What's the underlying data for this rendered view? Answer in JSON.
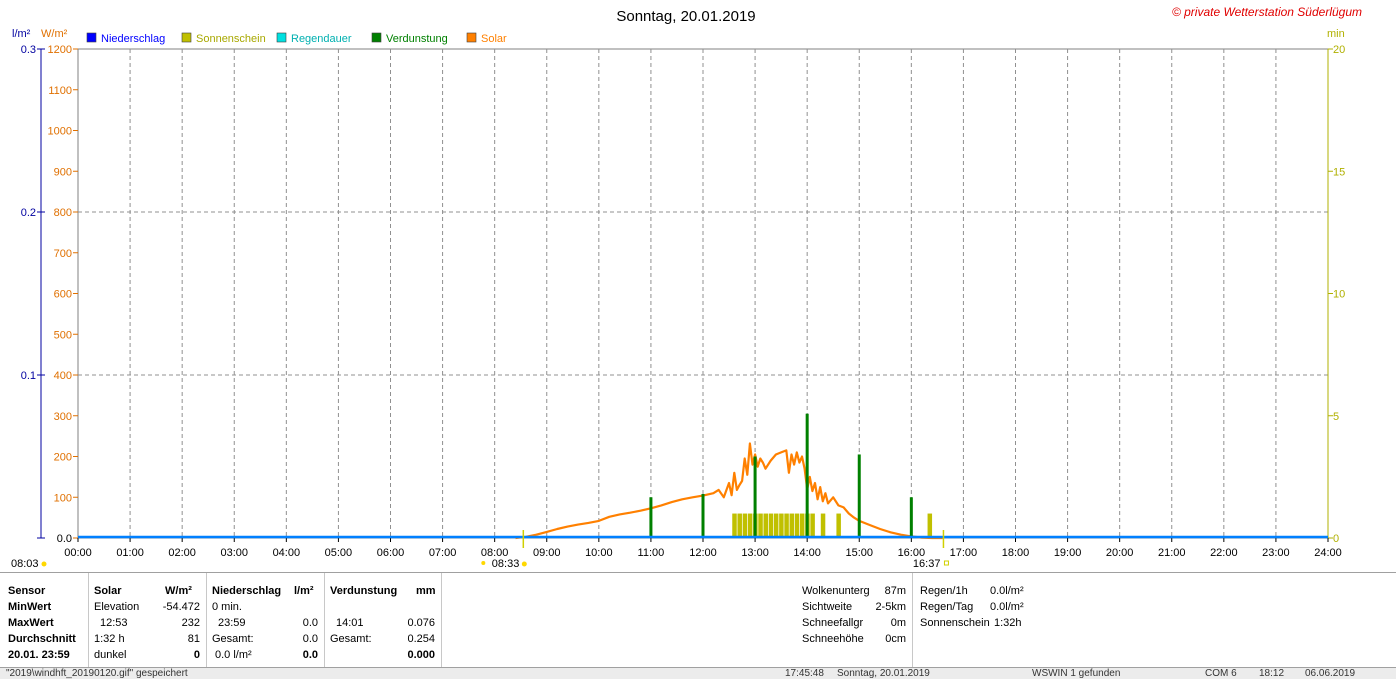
{
  "chart_data": {
    "type": "line",
    "title": "Sonntag, 20.01.2019",
    "copyright": "© private Wetterstation Süderlügum",
    "left_axis_units": [
      "l/m²",
      "W/m²"
    ],
    "right_axis_unit": "min",
    "x_ticks": [
      "00:00",
      "01:00",
      "02:00",
      "03:00",
      "04:00",
      "05:00",
      "06:00",
      "07:00",
      "08:00",
      "09:00",
      "10:00",
      "11:00",
      "12:00",
      "13:00",
      "14:00",
      "15:00",
      "16:00",
      "17:00",
      "18:00",
      "19:00",
      "20:00",
      "21:00",
      "22:00",
      "23:00",
      "24:00"
    ],
    "y_solar_ticks": [
      "0.0",
      "100",
      "200",
      "300",
      "400",
      "500",
      "600",
      "700",
      "800",
      "900",
      "1000",
      "1100",
      "1200"
    ],
    "y_solar_range": [
      0,
      1200
    ],
    "y_rain_ticks": [
      "0.0",
      "0.1",
      "0.2",
      "0.3"
    ],
    "y_rain_range": [
      0,
      0.3
    ],
    "y_min_ticks": [
      "0",
      "5",
      "10",
      "15",
      "20"
    ],
    "y_min_range": [
      0,
      20
    ],
    "grid": true,
    "legend": [
      {
        "label": "Niederschlag",
        "color": "#0000ff"
      },
      {
        "label": "Sonnenschein",
        "color": "#c0c000"
      },
      {
        "label": "Regendauer",
        "color": "#00e0e0"
      },
      {
        "label": "Verdunstung",
        "color": "#008000"
      },
      {
        "label": "Solar",
        "color": "#ff8000"
      }
    ],
    "sunrise": "08:33",
    "sunset": "16:37",
    "left_edge_time": "08:03",
    "solar_series": {
      "name": "Solar",
      "x_hours": [
        8.4,
        8.6,
        8.8,
        9.0,
        9.2,
        9.4,
        9.6,
        9.8,
        10.0,
        10.2,
        10.4,
        10.6,
        10.8,
        11.0,
        11.2,
        11.4,
        11.6,
        11.8,
        12.0,
        12.2,
        12.3,
        12.4,
        12.5,
        12.55,
        12.6,
        12.65,
        12.7,
        12.75,
        12.8,
        12.85,
        12.9,
        12.95,
        13.0,
        13.05,
        13.1,
        13.15,
        13.2,
        13.3,
        13.4,
        13.5,
        13.6,
        13.65,
        13.7,
        13.75,
        13.8,
        13.85,
        13.9,
        13.95,
        14.0,
        14.05,
        14.1,
        14.15,
        14.2,
        14.25,
        14.3,
        14.35,
        14.4,
        14.5,
        14.6,
        14.7,
        14.8,
        14.9,
        15.0,
        15.2,
        15.4,
        15.6,
        15.8,
        16.0,
        16.2,
        16.4,
        16.6
      ],
      "values": [
        0,
        3,
        8,
        15,
        22,
        28,
        33,
        37,
        42,
        52,
        58,
        62,
        67,
        73,
        80,
        88,
        95,
        100,
        104,
        110,
        118,
        100,
        135,
        105,
        160,
        118,
        130,
        140,
        195,
        155,
        232,
        180,
        205,
        175,
        195,
        185,
        170,
        190,
        205,
        210,
        215,
        160,
        205,
        180,
        210,
        185,
        200,
        170,
        120,
        150,
        115,
        135,
        95,
        125,
        90,
        110,
        85,
        100,
        80,
        75,
        60,
        50,
        42,
        32,
        22,
        14,
        8,
        4,
        1,
        0,
        0
      ]
    },
    "sunshine_min": {
      "name": "Sonnenschein",
      "x_hours": [
        12.6,
        12.7,
        12.8,
        12.9,
        13.0,
        13.1,
        13.2,
        13.3,
        13.4,
        13.5,
        13.6,
        13.7,
        13.8,
        13.9,
        14.0,
        14.1,
        14.3,
        14.6,
        16.35
      ],
      "values": [
        1.0,
        1.0,
        1.0,
        1.0,
        1.0,
        1.0,
        1.0,
        1.0,
        1.0,
        1.0,
        1.0,
        1.0,
        1.0,
        1.0,
        1.0,
        1.0,
        1.0,
        1.0,
        1.0
      ]
    },
    "evaporation_series": {
      "name": "Verdunstung",
      "x_hours": [
        11.0,
        12.0,
        13.0,
        14.0,
        15.0,
        16.0
      ],
      "values": [
        100,
        108,
        200,
        305,
        205,
        100
      ]
    },
    "rain_series": {
      "name": "Niederschlag",
      "value": 0.0
    }
  },
  "panel": {
    "row_labels": [
      "Sensor",
      "MinWert",
      "MaxWert",
      "Durchschnitt",
      "20.01. 23:59"
    ],
    "solar": {
      "header": "Solar",
      "unit": "W/m²",
      "r1": [
        "Elevation",
        "-54.472"
      ],
      "r2": [
        "12:53",
        "232"
      ],
      "r3": [
        "1:32 h",
        "81"
      ],
      "r4": [
        "dunkel",
        "0"
      ]
    },
    "rain": {
      "header": "Niederschlag",
      "unit": "l/m²",
      "r1": [
        "0 min.",
        ""
      ],
      "r2": [
        "23:59",
        "0.0"
      ],
      "r3": [
        "Gesamt:",
        "0.0"
      ],
      "r4": [
        "0.0 l/m²",
        "0.0"
      ]
    },
    "evap": {
      "header": "Verdunstung",
      "unit": "mm",
      "r1": [
        "",
        ""
      ],
      "r2": [
        "14:01",
        "0.076"
      ],
      "r3": [
        "Gesamt:",
        "0.254"
      ],
      "r4": [
        "",
        "0.000"
      ]
    },
    "right1": [
      [
        "Wolkenunterg",
        "87m"
      ],
      [
        "Sichtweite",
        "2-5km"
      ],
      [
        "Schneefallgr",
        "0m"
      ],
      [
        "Schneehöhe",
        "0cm"
      ]
    ],
    "right2": [
      [
        "Regen/1h",
        "0.0l/m²"
      ],
      [
        "Regen/Tag",
        "0.0l/m²"
      ],
      [
        "Sonnenschein",
        "1:32h"
      ]
    ]
  },
  "status": [
    "\"2019\\windhft_20190120.gif\"  gespeichert",
    "17:45:48",
    "Sonntag, 20.01.2019",
    "WSWIN 1 gefunden",
    "COM 6",
    "18:12",
    "06.06.2019"
  ]
}
